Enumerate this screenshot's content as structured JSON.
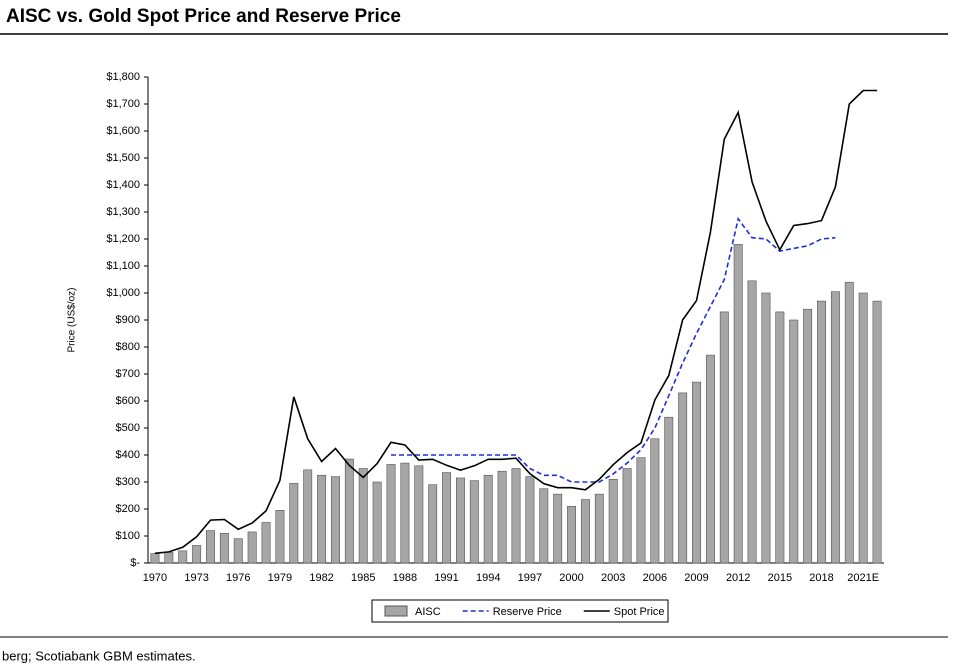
{
  "chart_data": {
    "type": "bar",
    "title": "AISC vs. Gold Spot Price and Reserve Price",
    "y_label": "Price (US$/oz)",
    "source": "berg; Scotiabank GBM estimates.",
    "categories": [
      "1970",
      null,
      null,
      "1973",
      null,
      null,
      "1976",
      null,
      null,
      "1979",
      null,
      null,
      "1982",
      null,
      null,
      "1985",
      null,
      null,
      "1988",
      null,
      null,
      "1991",
      null,
      null,
      "1994",
      null,
      null,
      "1997",
      null,
      null,
      "2000",
      null,
      null,
      "2003",
      null,
      null,
      "2006",
      null,
      null,
      "2009",
      null,
      null,
      "2012",
      null,
      null,
      "2015",
      null,
      null,
      "2018",
      null,
      null,
      "2021E",
      null
    ],
    "series": [
      {
        "name": "AISC",
        "kind": "bar",
        "color": "#a6a6a6",
        "values": [
          35,
          40,
          45,
          65,
          120,
          110,
          90,
          115,
          150,
          195,
          295,
          345,
          325,
          320,
          385,
          350,
          300,
          365,
          370,
          360,
          290,
          335,
          315,
          305,
          325,
          340,
          350,
          320,
          275,
          255,
          210,
          235,
          255,
          310,
          350,
          390,
          460,
          540,
          630,
          670,
          770,
          930,
          1180,
          1045,
          1000,
          930,
          900,
          940,
          970,
          1005,
          1040,
          1000,
          970
        ]
      },
      {
        "name": "Reserve Price",
        "kind": "line",
        "dashed": true,
        "color": "#1f2fd6",
        "values": [
          null,
          null,
          null,
          null,
          null,
          null,
          null,
          null,
          null,
          null,
          null,
          null,
          null,
          null,
          null,
          null,
          null,
          400,
          400,
          400,
          400,
          400,
          400,
          400,
          400,
          400,
          400,
          350,
          325,
          325,
          300,
          300,
          300,
          330,
          370,
          420,
          500,
          620,
          740,
          850,
          950,
          1050,
          1275,
          1205,
          1200,
          1155,
          1165,
          1175,
          1200,
          1205,
          null,
          null,
          null
        ]
      },
      {
        "name": "Spot Price",
        "kind": "line",
        "dashed": false,
        "color": "#000000",
        "values": [
          36,
          41,
          58,
          97,
          159,
          161,
          125,
          148,
          193,
          306,
          615,
          460,
          376,
          424,
          361,
          317,
          368,
          447,
          437,
          381,
          384,
          362,
          344,
          360,
          384,
          384,
          388,
          331,
          294,
          279,
          279,
          271,
          310,
          364,
          409,
          445,
          604,
          695,
          900,
          972,
          1225,
          1570,
          1669,
          1411,
          1266,
          1160,
          1250,
          1257,
          1268,
          1393,
          1700,
          1750,
          1750
        ]
      }
    ],
    "ylim": [
      0,
      1800
    ],
    "yticks": [
      {
        "value": 0,
        "label": "$-"
      },
      {
        "value": 100,
        "label": "$100"
      },
      {
        "value": 200,
        "label": "$200"
      },
      {
        "value": 300,
        "label": "$300"
      },
      {
        "value": 400,
        "label": "$400"
      },
      {
        "value": 500,
        "label": "$500"
      },
      {
        "value": 600,
        "label": "$600"
      },
      {
        "value": 700,
        "label": "$700"
      },
      {
        "value": 800,
        "label": "$800"
      },
      {
        "value": 900,
        "label": "$900"
      },
      {
        "value": 1000,
        "label": "$1,000"
      },
      {
        "value": 1100,
        "label": "$1,100"
      },
      {
        "value": 1200,
        "label": "$1,200"
      },
      {
        "value": 1300,
        "label": "$1,300"
      },
      {
        "value": 1400,
        "label": "$1,400"
      },
      {
        "value": 1500,
        "label": "$1,500"
      },
      {
        "value": 1600,
        "label": "$1,600"
      },
      {
        "value": 1700,
        "label": "$1,700"
      },
      {
        "value": 1800,
        "label": "$1,800"
      }
    ],
    "legend": "bottom"
  }
}
